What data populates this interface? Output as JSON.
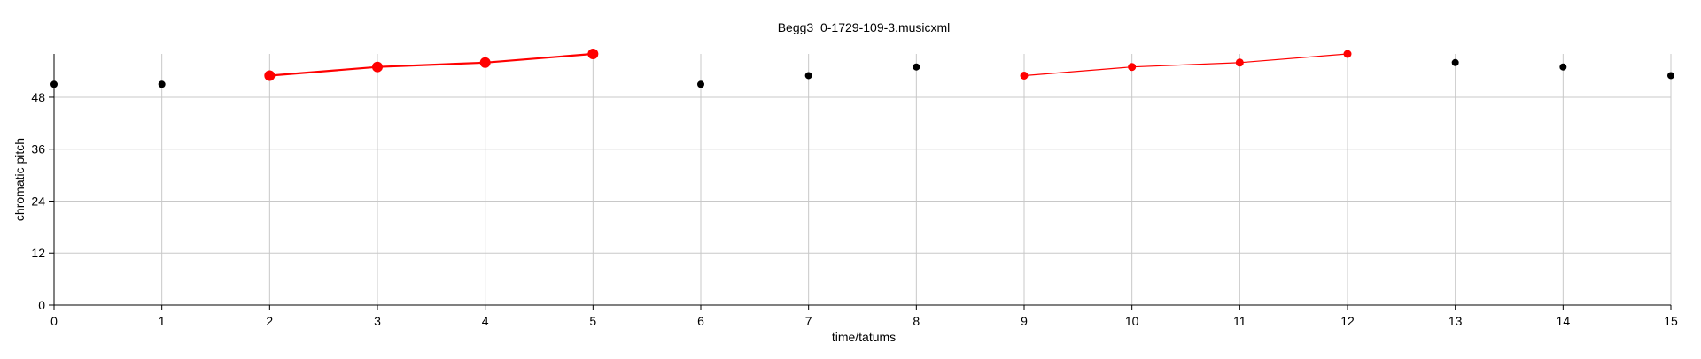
{
  "chart_data": {
    "type": "scatter",
    "title": "Begg3_0-1729-109-3.musicxml",
    "xlabel": "time/tatums",
    "ylabel": "chromatic pitch",
    "xlim": [
      0,
      15
    ],
    "ylim": [
      0,
      58
    ],
    "xticks": [
      0,
      1,
      2,
      3,
      4,
      5,
      6,
      7,
      8,
      9,
      10,
      11,
      12,
      13,
      14,
      15
    ],
    "yticks": [
      0,
      12,
      24,
      36,
      48
    ],
    "grid": true,
    "series": [
      {
        "color": "#000000",
        "points": [
          {
            "x": 0,
            "y": 51
          },
          {
            "x": 1,
            "y": 51
          },
          {
            "x": 6,
            "y": 51
          },
          {
            "x": 7,
            "y": 53
          },
          {
            "x": 8,
            "y": 55
          },
          {
            "x": 13,
            "y": 56
          },
          {
            "x": 14,
            "y": 55
          },
          {
            "x": 15,
            "y": 53
          }
        ]
      },
      {
        "color": "#ff0000",
        "connected": true,
        "emphasis": "thick",
        "points": [
          {
            "x": 2,
            "y": 53
          },
          {
            "x": 3,
            "y": 55
          },
          {
            "x": 4,
            "y": 56
          },
          {
            "x": 5,
            "y": 58
          }
        ]
      },
      {
        "color": "#ff0000",
        "connected": true,
        "emphasis": "thin",
        "points": [
          {
            "x": 9,
            "y": 53
          },
          {
            "x": 10,
            "y": 55
          },
          {
            "x": 11,
            "y": 56
          },
          {
            "x": 12,
            "y": 58
          }
        ]
      }
    ]
  }
}
